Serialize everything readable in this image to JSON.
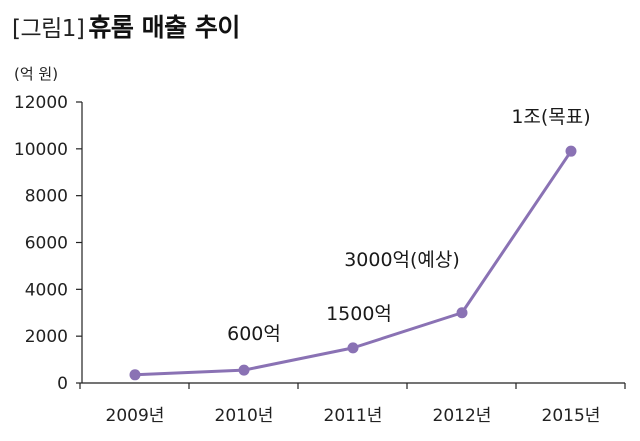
{
  "header": {
    "prefix": "[그림1]",
    "title": "휴롬 매출 추이"
  },
  "unit_label": "(억 원)",
  "colors": {
    "line": "#8a72b4",
    "marker": "#8a72b4",
    "axis": "#222222"
  },
  "chart_data": {
    "type": "line",
    "title": "휴롬 매출 추이",
    "ylabel": "(억 원)",
    "xlabel": "",
    "categories": [
      "2009년",
      "2010년",
      "2011년",
      "2012년",
      "2015년"
    ],
    "values": [
      350,
      550,
      1500,
      3000,
      9900
    ],
    "ylim": [
      0,
      12000
    ],
    "yticks": [
      0,
      2000,
      4000,
      6000,
      8000,
      10000,
      12000
    ],
    "grid": false,
    "annotations": [
      {
        "category": "2010년",
        "text": "600억"
      },
      {
        "category": "2011년",
        "text": "1500억"
      },
      {
        "category": "2012년",
        "text": "3000억(예상)"
      },
      {
        "category": "2015년",
        "text": "1조(목표)"
      }
    ]
  }
}
